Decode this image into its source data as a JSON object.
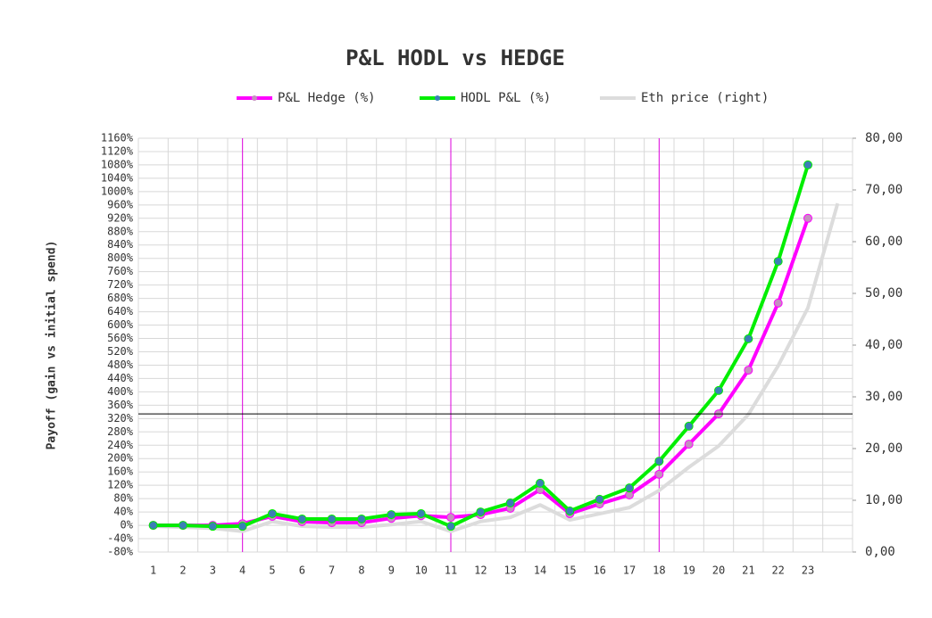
{
  "chart_data": {
    "type": "line",
    "title": "P&L HODL vs HEDGE",
    "y_label": "Payoff (gain vs initial spend)",
    "categories": [
      "1",
      "2",
      "3",
      "4",
      "5",
      "6",
      "7",
      "8",
      "9",
      "10",
      "11",
      "12",
      "13",
      "14",
      "15",
      "16",
      "17",
      "18",
      "19",
      "20",
      "21",
      "22",
      "23",
      null
    ],
    "series": [
      {
        "name": "P&L Hedge (%)",
        "color": "#ff00ff",
        "marker_color": "#c58fc0",
        "axis": "y",
        "values": [
          0,
          0,
          0,
          5,
          27,
          11,
          8,
          8,
          21,
          29,
          24,
          32,
          51,
          107,
          35,
          64,
          91,
          153,
          243,
          334,
          465,
          666,
          920,
          null
        ]
      },
      {
        "name": "HODL P&L (%)",
        "color": "#00ee00",
        "marker_color": "#3b7fb5",
        "axis": "y",
        "values": [
          0,
          0,
          -3,
          -3,
          35,
          19,
          19,
          19,
          32,
          35,
          -3,
          40,
          67,
          126,
          43,
          78,
          112,
          192,
          297,
          404,
          559,
          791,
          1080,
          null
        ]
      },
      {
        "name": "Eth price  (right)",
        "color": "#dcdcdc",
        "axis": "y2",
        "values": [
          5.0,
          4.8,
          4.6,
          4.0,
          5.9,
          5.0,
          4.8,
          4.8,
          5.3,
          5.9,
          4.0,
          5.9,
          6.7,
          9.1,
          6.2,
          7.4,
          8.6,
          11.9,
          16.4,
          20.5,
          26.6,
          36.0,
          47.2,
          67.4
        ]
      }
    ],
    "ylim": [
      -80,
      1160
    ],
    "yticks": [
      {
        "value": -80,
        "label": "-80%"
      },
      {
        "value": -40,
        "label": "-40%"
      },
      {
        "value": 0,
        "label": "0%"
      },
      {
        "value": 40,
        "label": "40%"
      },
      {
        "value": 80,
        "label": "80%"
      },
      {
        "value": 120,
        "label": "120%"
      },
      {
        "value": 160,
        "label": "160%"
      },
      {
        "value": 200,
        "label": "200%"
      },
      {
        "value": 240,
        "label": "240%"
      },
      {
        "value": 280,
        "label": "280%"
      },
      {
        "value": 320,
        "label": "320%"
      },
      {
        "value": 360,
        "label": "360%"
      },
      {
        "value": 400,
        "label": "400%"
      },
      {
        "value": 440,
        "label": "440%"
      },
      {
        "value": 480,
        "label": "480%"
      },
      {
        "value": 520,
        "label": "520%"
      },
      {
        "value": 560,
        "label": "560%"
      },
      {
        "value": 600,
        "label": "600%"
      },
      {
        "value": 640,
        "label": "640%"
      },
      {
        "value": 680,
        "label": "680%"
      },
      {
        "value": 720,
        "label": "720%"
      },
      {
        "value": 760,
        "label": "760%"
      },
      {
        "value": 800,
        "label": "800%"
      },
      {
        "value": 840,
        "label": "840%"
      },
      {
        "value": 880,
        "label": "880%"
      },
      {
        "value": 920,
        "label": "920%"
      },
      {
        "value": 960,
        "label": "960%"
      },
      {
        "value": 1000,
        "label": "1000%"
      },
      {
        "value": 1040,
        "label": "1040%"
      },
      {
        "value": 1080,
        "label": "1080%"
      },
      {
        "value": 1120,
        "label": "1120%"
      },
      {
        "value": 1160,
        "label": "1160%"
      }
    ],
    "y2lim": [
      0,
      80
    ],
    "y2ticks": [
      {
        "value": 0,
        "label": "0,00"
      },
      {
        "value": 10,
        "label": "10,00"
      },
      {
        "value": 20,
        "label": "20,00"
      },
      {
        "value": 30,
        "label": "30,00"
      },
      {
        "value": 40,
        "label": "40,00"
      },
      {
        "value": 50,
        "label": "50,00"
      },
      {
        "value": 60,
        "label": "60,00"
      },
      {
        "value": 70,
        "label": "70,00"
      },
      {
        "value": 80,
        "label": "80,00"
      }
    ],
    "grid": true,
    "vlines": [
      3.5,
      10.5,
      17.5
    ],
    "vline_color": "#dd00dd",
    "hline": 334,
    "hline_color": "#000000",
    "legend": "top"
  }
}
